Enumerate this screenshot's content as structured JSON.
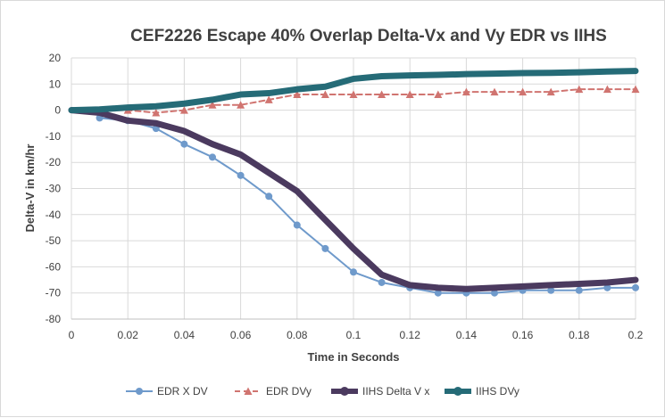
{
  "chart_data": {
    "type": "line",
    "title": "CEF2226 Escape 40% Overlap Delta-Vx and Vy EDR vs IIHS",
    "xlabel": "Time in Seconds",
    "ylabel": "Delta-V in km/hr",
    "xlim": [
      0,
      0.2
    ],
    "ylim": [
      -80,
      20
    ],
    "xticks": [
      0,
      0.02,
      0.04,
      0.06,
      0.08,
      0.1,
      0.12,
      0.14,
      0.16,
      0.18,
      0.2
    ],
    "xtick_labels": [
      "0",
      "0.02",
      "0.04",
      "0.06",
      "0.08",
      "0.1",
      "0.12",
      "0.14",
      "0.16",
      "0.18",
      "0.2"
    ],
    "yticks": [
      20,
      10,
      0,
      -10,
      -20,
      -30,
      -40,
      -50,
      -60,
      -70,
      -80
    ],
    "grid": true,
    "legend": "bottom",
    "series": [
      {
        "name": "EDR X DV",
        "color": "#6f9acb",
        "style": "solid-circle",
        "x": [
          0.01,
          0.02,
          0.03,
          0.04,
          0.05,
          0.06,
          0.07,
          0.08,
          0.09,
          0.1,
          0.11,
          0.12,
          0.13,
          0.14,
          0.15,
          0.16,
          0.17,
          0.18,
          0.19,
          0.2
        ],
        "y": [
          -3,
          -4,
          -7,
          -13,
          -18,
          -25,
          -33,
          -44,
          -53,
          -62,
          -66,
          -68,
          -70,
          -70,
          -70,
          -69,
          -69,
          -69,
          -68,
          -68
        ]
      },
      {
        "name": "EDR DVy",
        "color": "#d07470",
        "style": "dashed-triangle",
        "x": [
          0.01,
          0.02,
          0.03,
          0.04,
          0.05,
          0.06,
          0.07,
          0.08,
          0.09,
          0.1,
          0.11,
          0.12,
          0.13,
          0.14,
          0.15,
          0.16,
          0.17,
          0.18,
          0.19,
          0.2
        ],
        "y": [
          0,
          0,
          -1,
          0,
          2,
          2,
          4,
          6,
          6,
          6,
          6,
          6,
          6,
          7,
          7,
          7,
          7,
          8,
          8,
          8
        ]
      },
      {
        "name": "IIHS Delta V x",
        "color": "#4b3a5f",
        "style": "thick",
        "x": [
          0,
          0.01,
          0.02,
          0.03,
          0.04,
          0.05,
          0.06,
          0.07,
          0.08,
          0.09,
          0.1,
          0.11,
          0.12,
          0.13,
          0.14,
          0.15,
          0.16,
          0.17,
          0.18,
          0.19,
          0.2
        ],
        "y": [
          0,
          -1,
          -4,
          -5,
          -8,
          -13,
          -17,
          -24,
          -31,
          -42,
          -53,
          -63,
          -67,
          -68,
          -68.5,
          -68,
          -67.5,
          -67,
          -66.5,
          -66,
          -65
        ]
      },
      {
        "name": "IIHS DVy",
        "color": "#256b77",
        "style": "thick",
        "x": [
          0,
          0.01,
          0.02,
          0.03,
          0.04,
          0.05,
          0.06,
          0.07,
          0.08,
          0.09,
          0.1,
          0.11,
          0.12,
          0.13,
          0.14,
          0.15,
          0.16,
          0.17,
          0.18,
          0.19,
          0.2
        ],
        "y": [
          0,
          0.3,
          1,
          1.5,
          2.5,
          4,
          6,
          6.5,
          8,
          9,
          12,
          13,
          13.3,
          13.5,
          13.8,
          14,
          14.2,
          14.3,
          14.5,
          14.8,
          15
        ]
      }
    ]
  }
}
